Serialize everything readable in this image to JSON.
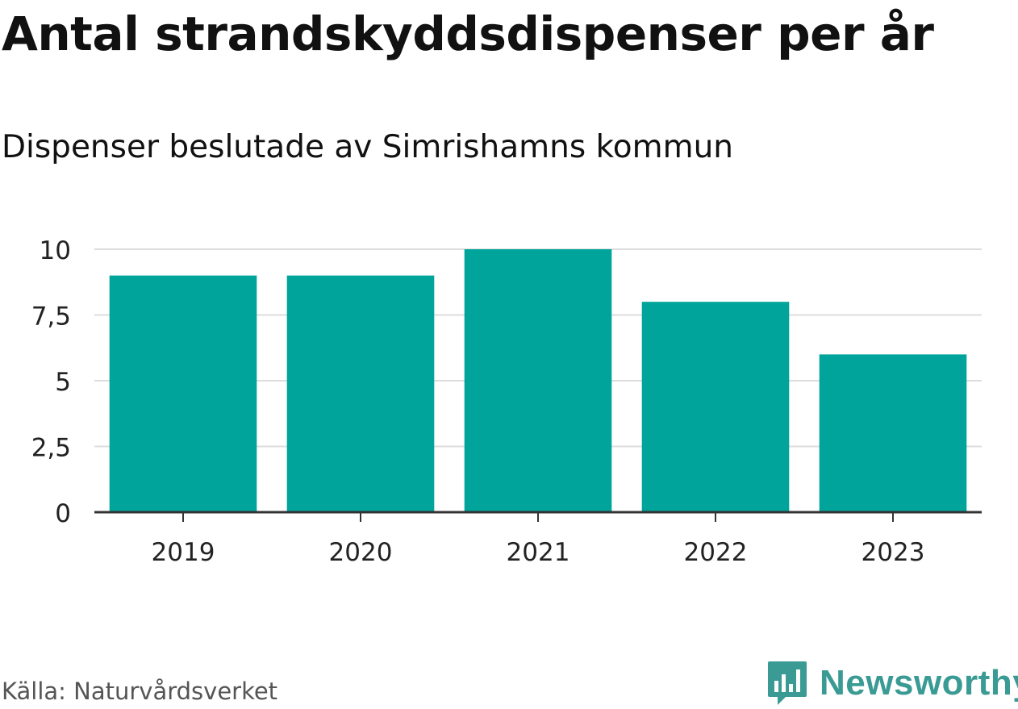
{
  "header": {
    "title": "Antal strandskyddsdispenser per år",
    "subtitle": "Dispenser beslutade av Simrishamns kommun"
  },
  "footer": {
    "source": "Källa: Naturvårdsverket",
    "brand": "Newsworthy"
  },
  "colors": {
    "bar": "#00a49a",
    "brand": "#3a9a94",
    "grid": "#dddddd",
    "axis": "#333333"
  },
  "chart_data": {
    "type": "bar",
    "title": "Antal strandskyddsdispenser per år",
    "subtitle": "Dispenser beslutade av Simrishamns kommun",
    "xlabel": "",
    "ylabel": "",
    "categories": [
      "2019",
      "2020",
      "2021",
      "2022",
      "2023"
    ],
    "values": [
      9,
      9,
      10,
      8,
      6
    ],
    "ylim": [
      0,
      10
    ],
    "yticks": [
      0,
      2.5,
      5,
      7.5,
      10
    ],
    "ytick_labels": [
      "0",
      "2,5",
      "5",
      "7,5",
      "10"
    ],
    "grid": true,
    "legend": "none"
  }
}
